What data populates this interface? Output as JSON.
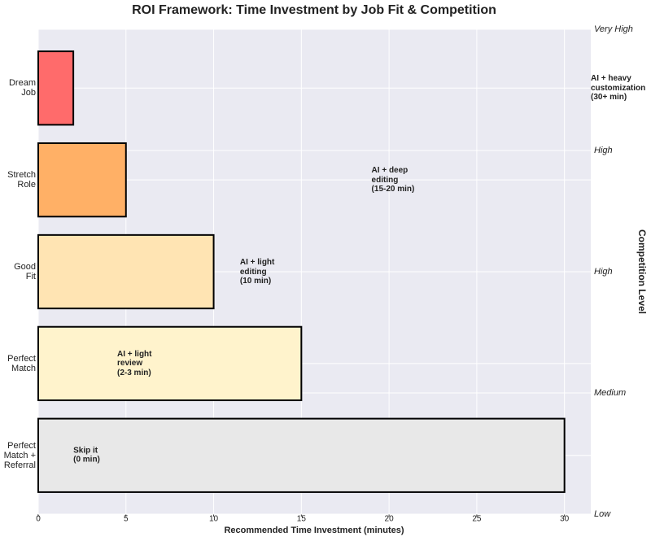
{
  "chart_data": {
    "type": "barh",
    "title": "ROI Framework: Time Investment by Job Fit & Competition",
    "xlabel": "Recommended Time Investment (minutes)",
    "y2label": "Competition Level",
    "categories": [
      "Dream\nJob",
      "Stretch\nRole",
      "Good\nFit",
      "Perfect\nMatch",
      "Perfect\nMatch +\nReferral"
    ],
    "values": [
      2,
      5,
      10,
      15,
      30
    ],
    "colors": [
      "#ff6b6b",
      "#ffb066",
      "#ffe4b3",
      "#fff3cc",
      "#e8e8e8"
    ],
    "xlim": [
      0,
      31.5
    ],
    "xticks": [
      0,
      5,
      10,
      15,
      20,
      25,
      30
    ],
    "y2lim": [
      0,
      4
    ],
    "y2ticks": [
      {
        "value": 0,
        "label": "Low"
      },
      {
        "value": 1,
        "label": "Medium"
      },
      {
        "value": 2,
        "label": "High"
      },
      {
        "value": 3,
        "label": "High"
      },
      {
        "value": 4,
        "label": "Very High"
      }
    ],
    "annotations": [
      "AI + heavy\ncustomization\n(30+ min)",
      "AI + deep\nediting\n(15-20 min)",
      "AI + light\nediting\n(10 min)",
      "AI + light\nreview\n(2-3 min)",
      "Skip it\n(0 min)"
    ],
    "grid": true
  }
}
